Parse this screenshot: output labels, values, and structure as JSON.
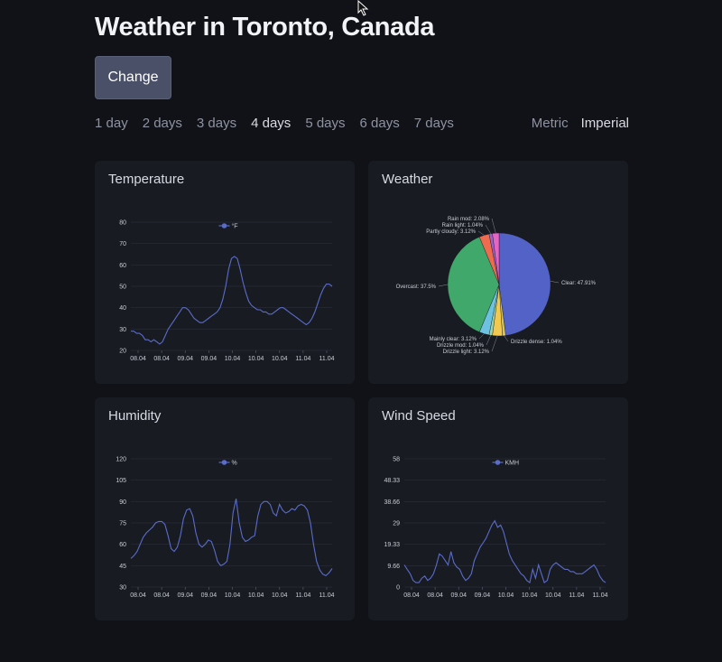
{
  "header": {
    "title": "Weather in Toronto, Canada"
  },
  "toolbar": {
    "change_label": "Change"
  },
  "days": [
    "1 day",
    "2 days",
    "3 days",
    "4 days",
    "5 days",
    "6 days",
    "7 days"
  ],
  "active_day": "4 days",
  "units": [
    "Metric",
    "Imperial"
  ],
  "active_unit": "Imperial",
  "colors": {
    "series": "#5a6cc8",
    "grid": "#2a2d36",
    "text": "#c9ccd4"
  },
  "x_ticks": [
    "08.04",
    "08.04",
    "09.04",
    "09.04",
    "10.04",
    "10.04",
    "10.04",
    "11.04",
    "11.04"
  ],
  "chart_data": [
    {
      "type": "line",
      "title": "Temperature",
      "legend": "°F",
      "y_ticks": [
        20,
        30,
        40,
        50,
        60,
        70,
        80
      ],
      "ylim": [
        20,
        80
      ],
      "values": [
        29,
        29,
        28,
        28,
        27,
        25,
        25,
        24,
        25,
        24,
        23,
        24,
        27,
        30,
        32,
        34,
        36,
        38,
        40,
        40,
        39,
        37,
        35,
        34,
        33,
        33,
        34,
        35,
        36,
        37,
        38,
        40,
        44,
        50,
        58,
        63,
        64,
        63,
        58,
        52,
        47,
        43,
        41,
        40,
        39,
        39,
        38,
        38,
        37,
        37,
        38,
        39,
        40,
        40,
        39,
        38,
        37,
        36,
        35,
        34,
        33,
        32,
        33,
        35,
        38,
        42,
        46,
        49,
        51,
        51,
        50
      ]
    },
    {
      "type": "pie",
      "title": "Weather",
      "slices": [
        {
          "label": "Clear: 47.91%",
          "value": 47.91,
          "color": "#5262c6"
        },
        {
          "label": "Drizzle dense: 1.04%",
          "value": 1.04,
          "color": "#d9c45a"
        },
        {
          "label": "Drizzle light: 3.12%",
          "value": 3.12,
          "color": "#f2c84f"
        },
        {
          "label": "Drizzle mod: 1.04%",
          "value": 1.04,
          "color": "#9bd3a8"
        },
        {
          "label": "Mainly clear: 3.12%",
          "value": 3.12,
          "color": "#6cc2e0"
        },
        {
          "label": "Overcast: 37.5%",
          "value": 37.5,
          "color": "#3fa86a"
        },
        {
          "label": "Partly cloudy: 3.12%",
          "value": 3.12,
          "color": "#ef6b4f"
        },
        {
          "label": "Rain light: 1.04%",
          "value": 1.04,
          "color": "#9d5fc9"
        },
        {
          "label": "Rain mod: 2.08%",
          "value": 2.08,
          "color": "#e565c4"
        }
      ]
    },
    {
      "type": "line",
      "title": "Humidity",
      "legend": "%",
      "y_ticks": [
        30,
        45,
        60,
        75,
        90,
        105,
        120
      ],
      "ylim": [
        30,
        120
      ],
      "values": [
        50,
        52,
        55,
        60,
        65,
        68,
        70,
        72,
        75,
        76,
        76,
        74,
        66,
        57,
        55,
        58,
        66,
        78,
        84,
        85,
        80,
        68,
        60,
        58,
        60,
        63,
        62,
        56,
        48,
        45,
        46,
        48,
        60,
        82,
        92,
        75,
        65,
        62,
        63,
        65,
        66,
        80,
        88,
        90,
        90,
        88,
        82,
        80,
        88,
        84,
        82,
        83,
        85,
        84,
        87,
        88,
        87,
        84,
        75,
        60,
        48,
        42,
        39,
        38,
        40,
        43
      ]
    },
    {
      "type": "line",
      "title": "Wind Speed",
      "legend": "KMH",
      "y_ticks": [
        0,
        9.66,
        19.33,
        29,
        38.66,
        48.33,
        58
      ],
      "ylim": [
        0,
        58
      ],
      "values": [
        10,
        8,
        6,
        3,
        2,
        2,
        4,
        5,
        3,
        4,
        6,
        10,
        15,
        14,
        12,
        10,
        16,
        11,
        9,
        8,
        5,
        3,
        4,
        6,
        12,
        15,
        18,
        20,
        22,
        25,
        28,
        30,
        27,
        28,
        25,
        20,
        15,
        12,
        10,
        8,
        6,
        5,
        3,
        2,
        8,
        4,
        10,
        6,
        2,
        3,
        8,
        10,
        11,
        10,
        9,
        8,
        8,
        7,
        7,
        6,
        6,
        6,
        7,
        8,
        9,
        10,
        8,
        5,
        3,
        2
      ]
    }
  ]
}
